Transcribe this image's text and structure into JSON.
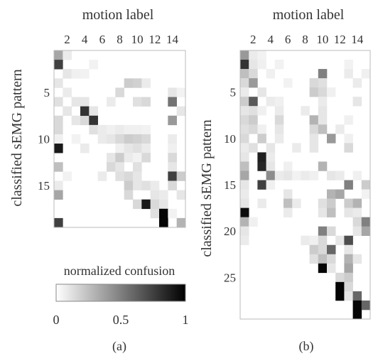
{
  "chart_data": [
    {
      "type": "heatmap",
      "panel_label": "(a)",
      "xlabel": "motion label",
      "ylabel": "classified sEMG pattern",
      "x_ticks": [
        2,
        4,
        6,
        8,
        10,
        12,
        14
      ],
      "y_ticks": [
        5,
        10,
        15
      ],
      "n_cols": 15,
      "n_rows": 19,
      "colorbar": {
        "label": "normalized confusion",
        "ticks": [
          "0",
          "0.5",
          "1"
        ],
        "range": [
          0,
          1
        ],
        "colormap": "white-to-black"
      },
      "cells": [
        [
          1,
          1,
          0.35
        ],
        [
          1,
          2,
          0.08
        ],
        [
          2,
          1,
          0.75
        ],
        [
          3,
          2,
          0.1
        ],
        [
          3,
          3,
          0.06
        ],
        [
          3,
          4,
          0.05
        ],
        [
          2,
          5,
          0.05
        ],
        [
          4,
          1,
          0.1
        ],
        [
          4,
          9,
          0.2
        ],
        [
          4,
          10,
          0.18
        ],
        [
          4,
          11,
          0.08
        ],
        [
          5,
          8,
          0.15
        ],
        [
          5,
          2,
          0.08
        ],
        [
          5,
          14,
          0.1
        ],
        [
          5,
          15,
          0.05
        ],
        [
          6,
          1,
          0.12
        ],
        [
          6,
          3,
          0.1
        ],
        [
          6,
          4,
          0.1
        ],
        [
          6,
          7,
          0.08
        ],
        [
          6,
          10,
          0.12
        ],
        [
          6,
          11,
          0.15
        ],
        [
          6,
          14,
          0.55
        ],
        [
          7,
          2,
          0.1
        ],
        [
          7,
          5,
          0.08
        ],
        [
          7,
          15,
          0.1
        ],
        [
          8,
          1,
          0.15
        ],
        [
          8,
          3,
          0.1
        ],
        [
          8,
          4,
          0.15
        ],
        [
          8,
          14,
          0.4
        ],
        [
          7,
          4,
          0.8
        ],
        [
          7,
          5,
          0.1
        ],
        [
          8,
          5,
          0.8
        ],
        [
          9,
          1,
          0.15
        ],
        [
          9,
          5,
          0.12
        ],
        [
          9,
          6,
          0.08
        ],
        [
          9,
          7,
          0.06
        ],
        [
          9,
          8,
          0.08
        ],
        [
          9,
          9,
          0.06
        ],
        [
          9,
          10,
          0.06
        ],
        [
          9,
          11,
          0.05
        ],
        [
          10,
          1,
          0.06
        ],
        [
          10,
          3,
          0.05
        ],
        [
          10,
          6,
          0.08
        ],
        [
          10,
          7,
          0.1
        ],
        [
          10,
          8,
          0.15
        ],
        [
          10,
          9,
          0.2
        ],
        [
          10,
          10,
          0.18
        ],
        [
          10,
          11,
          0.15
        ],
        [
          10,
          14,
          0.08
        ],
        [
          11,
          1,
          0.9
        ],
        [
          11,
          4,
          0.08
        ],
        [
          11,
          8,
          0.06
        ],
        [
          11,
          9,
          0.1
        ],
        [
          11,
          10,
          0.12
        ],
        [
          11,
          11,
          0.08
        ],
        [
          11,
          14,
          0.06
        ],
        [
          12,
          7,
          0.1
        ],
        [
          12,
          8,
          0.2
        ],
        [
          12,
          9,
          0.08
        ],
        [
          12,
          10,
          0.05
        ],
        [
          12,
          11,
          0.15
        ],
        [
          12,
          14,
          0.15
        ],
        [
          13,
          1,
          0.25
        ],
        [
          13,
          7,
          0.15
        ],
        [
          13,
          8,
          0.1
        ],
        [
          13,
          10,
          0.12
        ],
        [
          13,
          14,
          0.1
        ],
        [
          14,
          2,
          0.05
        ],
        [
          14,
          6,
          0.08
        ],
        [
          14,
          8,
          0.12
        ],
        [
          14,
          9,
          0.15
        ],
        [
          14,
          10,
          0.1
        ],
        [
          14,
          14,
          0.75
        ],
        [
          14,
          15,
          0.2
        ],
        [
          15,
          1,
          0.08
        ],
        [
          15,
          9,
          0.2
        ],
        [
          15,
          10,
          0.1
        ],
        [
          15,
          11,
          0.12
        ],
        [
          15,
          12,
          0.08
        ],
        [
          15,
          14,
          0.15
        ],
        [
          16,
          1,
          0.35
        ],
        [
          16,
          9,
          0.15
        ],
        [
          16,
          12,
          0.1
        ],
        [
          16,
          13,
          0.08
        ],
        [
          16,
          15,
          0.1
        ],
        [
          17,
          10,
          0.15
        ],
        [
          17,
          11,
          0.9
        ],
        [
          17,
          12,
          0.15
        ],
        [
          17,
          13,
          0.1
        ],
        [
          18,
          12,
          0.12
        ],
        [
          18,
          13,
          0.98
        ],
        [
          18,
          14,
          0.05
        ],
        [
          19,
          1,
          0.75
        ],
        [
          19,
          13,
          0.98
        ],
        [
          19,
          15,
          0.3
        ]
      ]
    },
    {
      "type": "heatmap",
      "panel_label": "(b)",
      "xlabel": "motion label",
      "ylabel": "classified sEMG pattern",
      "x_ticks": [
        2,
        4,
        6,
        8,
        10,
        12,
        14
      ],
      "y_ticks": [
        5,
        10,
        15,
        20,
        25
      ],
      "n_cols": 15,
      "n_rows": 29,
      "cells": [
        [
          1,
          1,
          0.4
        ],
        [
          1,
          2,
          0.08
        ],
        [
          1,
          3,
          0.05
        ],
        [
          2,
          1,
          0.8
        ],
        [
          2,
          2,
          0.1
        ],
        [
          2,
          3,
          0.06
        ],
        [
          2,
          5,
          0.05
        ],
        [
          2,
          13,
          0.05
        ],
        [
          3,
          1,
          0.25
        ],
        [
          3,
          2,
          0.15
        ],
        [
          3,
          4,
          0.06
        ],
        [
          3,
          10,
          0.5
        ],
        [
          3,
          13,
          0.08
        ],
        [
          3,
          15,
          0.06
        ],
        [
          4,
          1,
          0.15
        ],
        [
          4,
          2,
          0.4
        ],
        [
          4,
          6,
          0.05
        ],
        [
          4,
          9,
          0.15
        ],
        [
          4,
          10,
          0.12
        ],
        [
          4,
          14,
          0.08
        ],
        [
          5,
          1,
          0.08
        ],
        [
          5,
          3,
          0.1
        ],
        [
          5,
          9,
          0.2
        ],
        [
          5,
          10,
          0.15
        ],
        [
          5,
          11,
          0.06
        ],
        [
          6,
          1,
          0.2
        ],
        [
          6,
          2,
          0.65
        ],
        [
          6,
          4,
          0.08
        ],
        [
          6,
          5,
          0.06
        ],
        [
          6,
          10,
          0.08
        ],
        [
          6,
          14,
          0.1
        ],
        [
          7,
          1,
          0.1
        ],
        [
          7,
          2,
          0.12
        ],
        [
          7,
          3,
          0.06
        ],
        [
          7,
          5,
          0.08
        ],
        [
          7,
          8,
          0.08
        ],
        [
          7,
          10,
          0.1
        ],
        [
          8,
          1,
          0.15
        ],
        [
          8,
          2,
          0.2
        ],
        [
          8,
          5,
          0.15
        ],
        [
          8,
          9,
          0.3
        ],
        [
          8,
          10,
          0.1
        ],
        [
          8,
          13,
          0.06
        ],
        [
          9,
          1,
          0.12
        ],
        [
          9,
          2,
          0.15
        ],
        [
          9,
          3,
          0.06
        ],
        [
          9,
          5,
          0.1
        ],
        [
          9,
          9,
          0.15
        ],
        [
          9,
          10,
          0.25
        ],
        [
          9,
          12,
          0.08
        ],
        [
          10,
          1,
          0.15
        ],
        [
          10,
          3,
          0.2
        ],
        [
          10,
          5,
          0.08
        ],
        [
          10,
          9,
          0.1
        ],
        [
          10,
          11,
          0.4
        ],
        [
          10,
          13,
          0.06
        ],
        [
          11,
          1,
          0.08
        ],
        [
          11,
          2,
          0.12
        ],
        [
          11,
          4,
          0.1
        ],
        [
          11,
          7,
          0.08
        ],
        [
          11,
          9,
          0.1
        ],
        [
          11,
          13,
          0.15
        ],
        [
          12,
          1,
          0.1
        ],
        [
          12,
          3,
          0.88
        ],
        [
          12,
          4,
          0.08
        ],
        [
          13,
          1,
          0.25
        ],
        [
          13,
          3,
          0.85
        ],
        [
          13,
          4,
          0.1
        ],
        [
          13,
          6,
          0.06
        ],
        [
          13,
          10,
          0.3
        ],
        [
          14,
          1,
          0.35
        ],
        [
          14,
          4,
          0.45
        ],
        [
          14,
          5,
          0.08
        ],
        [
          14,
          6,
          0.1
        ],
        [
          14,
          7,
          0.05
        ],
        [
          14,
          8,
          0.08
        ],
        [
          14,
          9,
          0.06
        ],
        [
          14,
          11,
          0.1
        ],
        [
          14,
          12,
          0.08
        ],
        [
          14,
          14,
          0.06
        ],
        [
          15,
          1,
          0.1
        ],
        [
          15,
          3,
          0.75
        ],
        [
          15,
          4,
          0.06
        ],
        [
          15,
          13,
          0.5
        ],
        [
          15,
          15,
          0.2
        ],
        [
          16,
          1,
          0.08
        ],
        [
          16,
          6,
          0.1
        ],
        [
          16,
          11,
          0.3
        ],
        [
          16,
          12,
          0.35
        ],
        [
          16,
          15,
          0.05
        ],
        [
          17,
          1,
          0.1
        ],
        [
          17,
          3,
          0.08
        ],
        [
          17,
          6,
          0.25
        ],
        [
          17,
          7,
          0.08
        ],
        [
          17,
          10,
          0.12
        ],
        [
          17,
          11,
          0.2
        ],
        [
          17,
          13,
          0.2
        ],
        [
          17,
          14,
          0.3
        ],
        [
          18,
          1,
          0.95
        ],
        [
          18,
          6,
          0.08
        ],
        [
          18,
          10,
          0.1
        ],
        [
          18,
          11,
          0.25
        ],
        [
          18,
          13,
          0.1
        ],
        [
          18,
          14,
          0.08
        ],
        [
          19,
          1,
          0.3
        ],
        [
          19,
          2,
          0.06
        ],
        [
          19,
          14,
          0.15
        ],
        [
          19,
          15,
          0.5
        ],
        [
          20,
          1,
          0.1
        ],
        [
          20,
          10,
          0.5
        ],
        [
          20,
          11,
          0.15
        ],
        [
          20,
          14,
          0.1
        ],
        [
          20,
          15,
          0.35
        ],
        [
          21,
          1,
          0.08
        ],
        [
          21,
          8,
          0.08
        ],
        [
          21,
          9,
          0.06
        ],
        [
          21,
          10,
          0.15
        ],
        [
          21,
          12,
          0.1
        ],
        [
          21,
          13,
          0.7
        ],
        [
          22,
          9,
          0.2
        ],
        [
          22,
          10,
          0.15
        ],
        [
          22,
          11,
          0.6
        ],
        [
          22,
          13,
          0.1
        ],
        [
          23,
          9,
          0.12
        ],
        [
          23,
          10,
          0.25
        ],
        [
          23,
          11,
          0.15
        ],
        [
          23,
          13,
          0.3
        ],
        [
          23,
          14,
          0.1
        ],
        [
          24,
          10,
          0.98
        ],
        [
          24,
          11,
          0.1
        ],
        [
          24,
          13,
          0.35
        ],
        [
          25,
          12,
          0.15
        ],
        [
          25,
          13,
          0.2
        ],
        [
          26,
          12,
          0.98
        ],
        [
          26,
          13,
          0.15
        ],
        [
          27,
          12,
          0.98
        ],
        [
          27,
          13,
          0.1
        ],
        [
          27,
          14,
          0.6
        ],
        [
          28,
          14,
          0.98
        ],
        [
          28,
          15,
          0.6
        ],
        [
          29,
          14,
          0.98
        ]
      ]
    }
  ]
}
